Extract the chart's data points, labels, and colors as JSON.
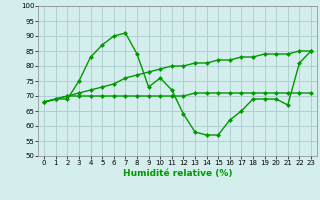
{
  "xlabel": "Humidité relative (%)",
  "xlim": [
    -0.5,
    23.5
  ],
  "ylim": [
    50,
    100
  ],
  "yticks": [
    50,
    55,
    60,
    65,
    70,
    75,
    80,
    85,
    90,
    95,
    100
  ],
  "xticks": [
    0,
    1,
    2,
    3,
    4,
    5,
    6,
    7,
    8,
    9,
    10,
    11,
    12,
    13,
    14,
    15,
    16,
    17,
    18,
    19,
    20,
    21,
    22,
    23
  ],
  "background_color": "#d4eeee",
  "grid_color": "#aacccc",
  "line_color": "#009900",
  "line1": [
    68,
    69,
    69,
    75,
    83,
    87,
    90,
    91,
    84,
    73,
    76,
    72,
    64,
    58,
    57,
    57,
    62,
    65,
    69,
    69,
    69,
    67,
    81,
    85
  ],
  "line2": [
    68,
    69,
    70,
    70,
    70,
    70,
    70,
    70,
    70,
    70,
    70,
    70,
    70,
    71,
    71,
    71,
    71,
    71,
    71,
    71,
    71,
    71,
    71,
    71
  ],
  "line3": [
    68,
    69,
    70,
    71,
    72,
    73,
    74,
    76,
    77,
    78,
    79,
    80,
    80,
    81,
    81,
    82,
    82,
    83,
    83,
    84,
    84,
    84,
    85,
    85
  ],
  "marker_size": 2.5,
  "linewidth": 1.0,
  "tick_fontsize": 5.0,
  "xlabel_fontsize": 6.5
}
